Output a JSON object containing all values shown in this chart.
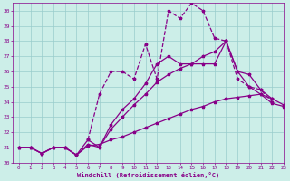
{
  "xlabel": "Windchill (Refroidissement éolien,°C)",
  "xlim": [
    -0.5,
    23
  ],
  "ylim": [
    20,
    30.5
  ],
  "xticks": [
    0,
    1,
    2,
    3,
    4,
    5,
    6,
    7,
    8,
    9,
    10,
    11,
    12,
    13,
    14,
    15,
    16,
    17,
    18,
    19,
    20,
    21,
    22,
    23
  ],
  "yticks": [
    20,
    21,
    22,
    23,
    24,
    25,
    26,
    27,
    28,
    29,
    30
  ],
  "background_color": "#cceee8",
  "line_color": "#880088",
  "grid_color": "#99cccc",
  "line1_x": [
    0,
    1,
    2,
    3,
    4,
    5,
    6,
    7,
    8,
    9,
    10,
    11,
    12,
    13,
    14,
    15,
    16,
    17,
    18,
    19,
    20,
    21,
    22,
    23
  ],
  "line1_y": [
    21.0,
    21.0,
    20.6,
    21.0,
    21.0,
    20.5,
    21.1,
    21.2,
    21.5,
    21.7,
    22.0,
    22.3,
    22.6,
    22.9,
    23.2,
    23.5,
    23.7,
    24.0,
    24.2,
    24.3,
    24.4,
    24.5,
    23.9,
    23.7
  ],
  "line2_x": [
    0,
    1,
    2,
    3,
    4,
    5,
    6,
    7,
    8,
    9,
    10,
    11,
    12,
    13,
    14,
    15,
    16,
    17,
    18,
    19,
    20,
    21,
    22,
    23
  ],
  "line2_y": [
    21.0,
    21.0,
    20.6,
    21.0,
    21.0,
    20.5,
    21.2,
    21.0,
    22.2,
    23.0,
    23.8,
    24.5,
    25.3,
    25.8,
    26.2,
    26.5,
    27.0,
    27.3,
    28.0,
    26.0,
    25.0,
    24.5,
    24.2,
    23.8
  ],
  "line3_x": [
    0,
    1,
    2,
    3,
    4,
    5,
    6,
    7,
    8,
    9,
    10,
    11,
    12,
    13,
    14,
    15,
    16,
    17,
    18,
    19,
    20,
    21,
    22
  ],
  "line3_y": [
    21.0,
    21.0,
    20.6,
    21.0,
    21.0,
    20.5,
    21.5,
    21.0,
    22.5,
    23.5,
    24.2,
    25.2,
    26.5,
    27.0,
    26.5,
    26.5,
    26.5,
    26.5,
    28.0,
    26.0,
    25.8,
    24.8,
    24.2
  ],
  "line4_x": [
    6,
    7,
    8,
    9,
    10,
    11,
    12,
    13,
    14,
    15,
    16,
    17,
    18,
    19,
    20,
    21,
    22
  ],
  "line4_y": [
    21.5,
    24.5,
    26.0,
    26.0,
    25.5,
    27.8,
    25.5,
    30.0,
    29.5,
    30.5,
    30.0,
    28.2,
    28.0,
    25.5,
    25.0,
    24.8,
    24.0
  ]
}
